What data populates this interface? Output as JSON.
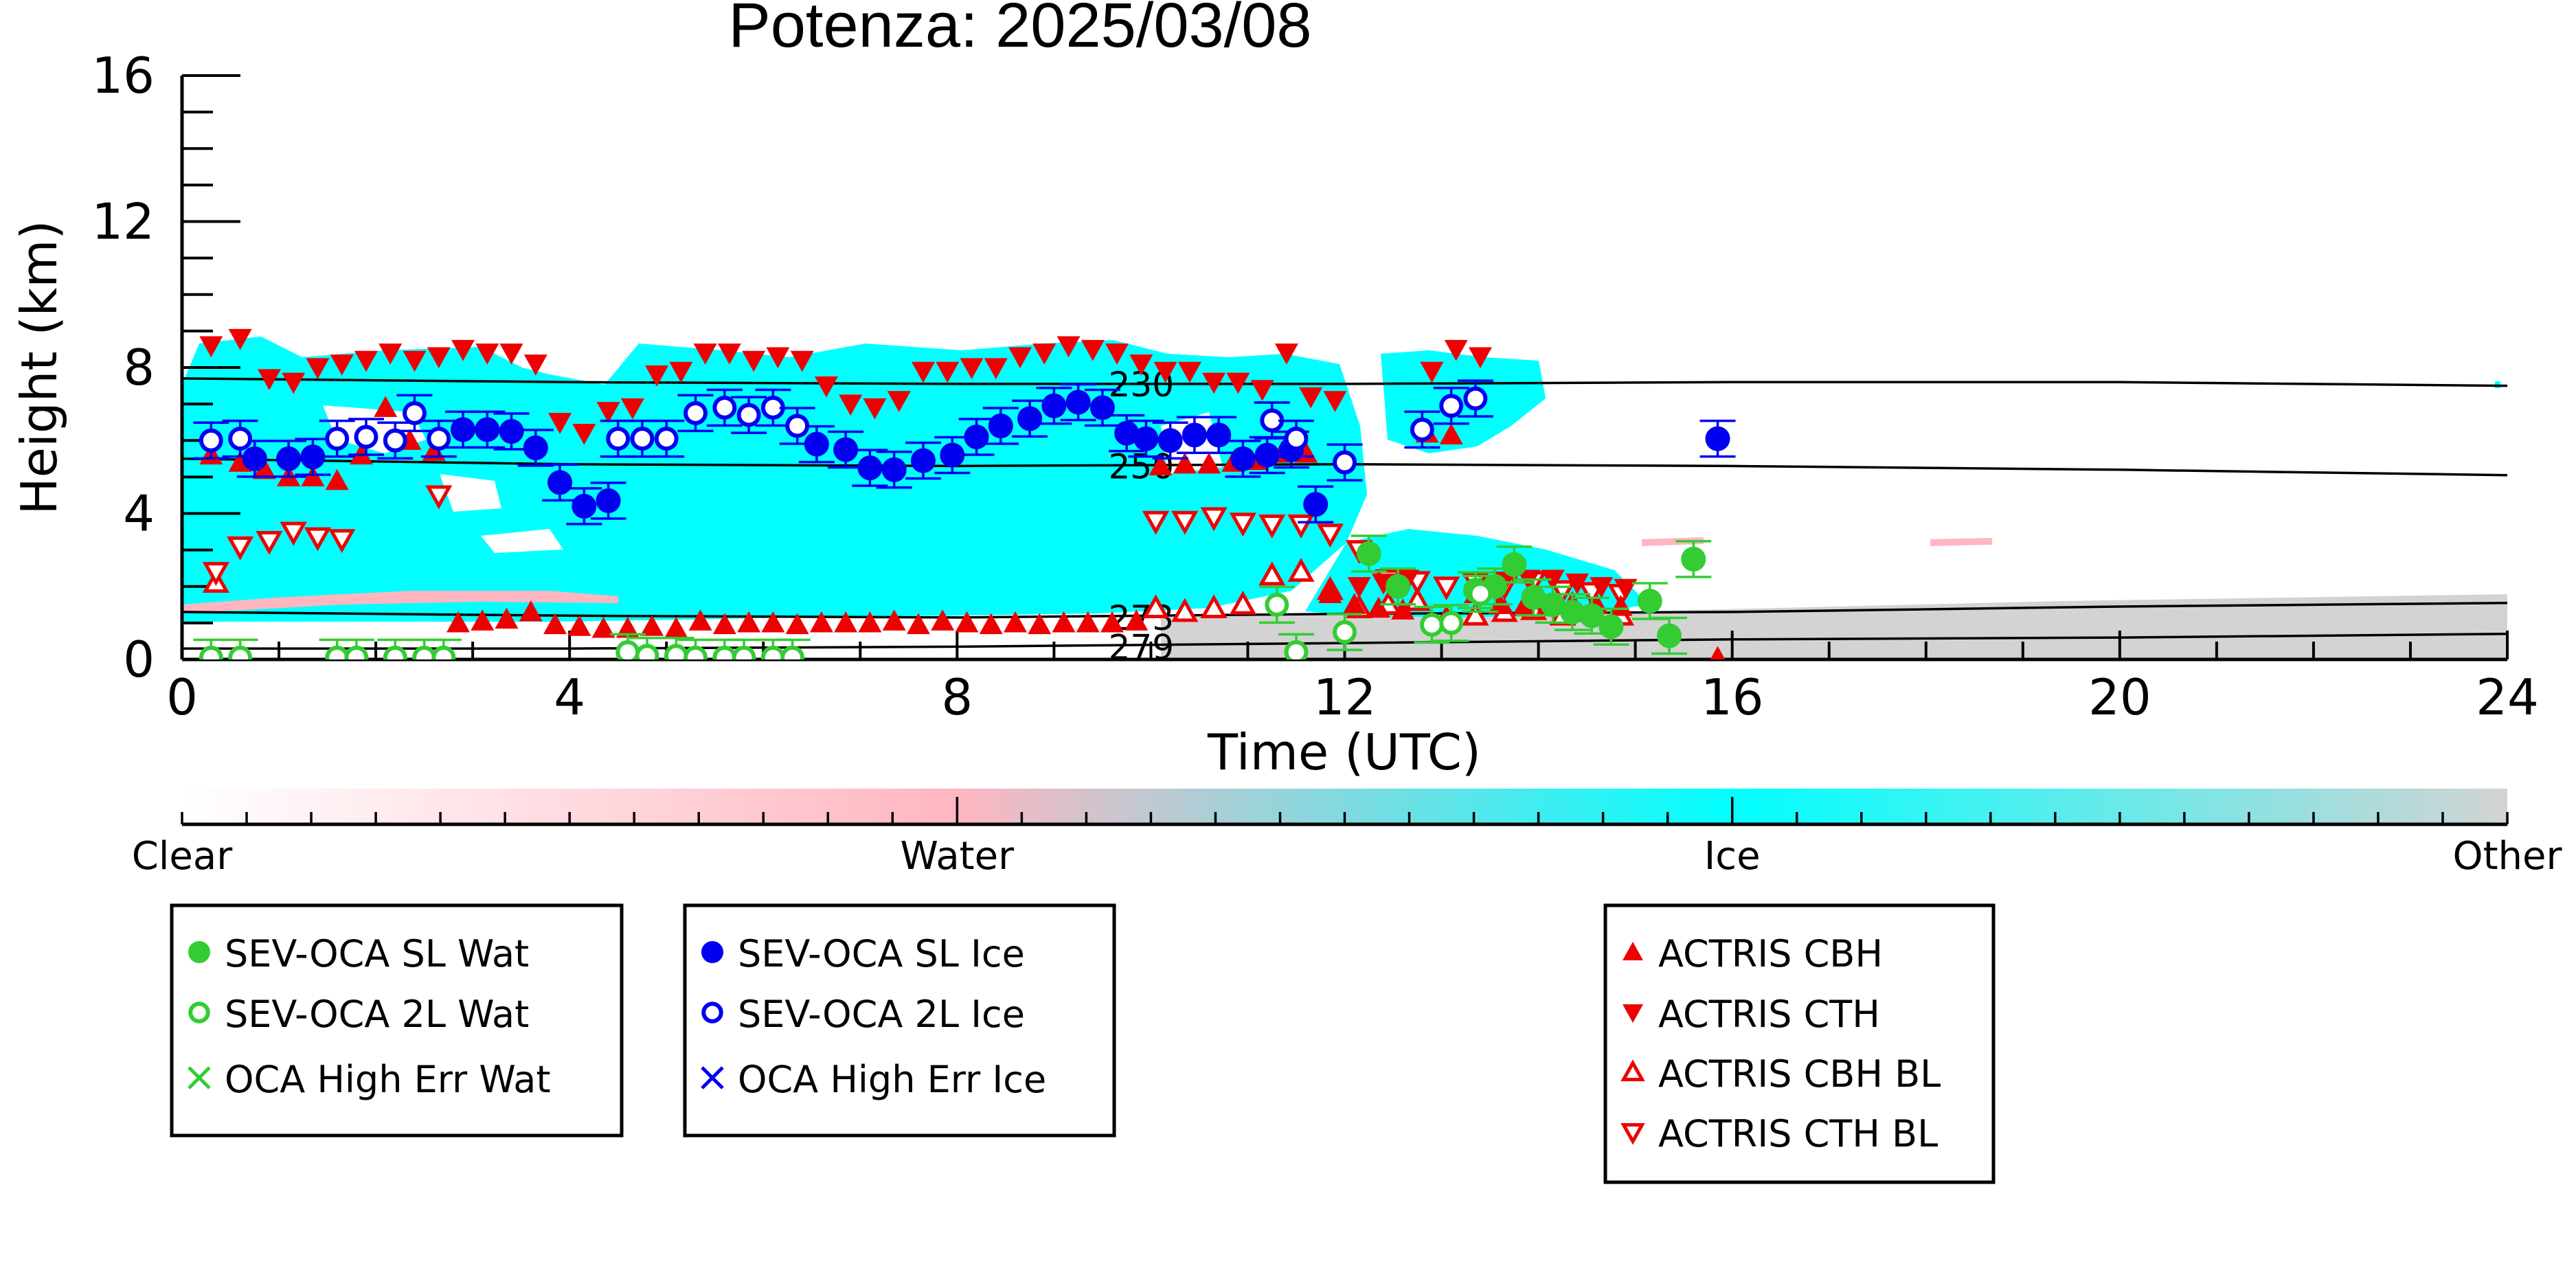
{
  "chart_data": {
    "type": "scatter",
    "title": "Potenza: 2025/03/08",
    "xlabel": "Time (UTC)",
    "ylabel": "Height (km)",
    "xlim": [
      0,
      24
    ],
    "ylim": [
      0,
      16
    ],
    "x_ticks": [
      "0",
      "4",
      "8",
      "12",
      "16",
      "20",
      "24"
    ],
    "y_ticks": [
      "0",
      "4",
      "8",
      "12",
      "16"
    ],
    "grid": false,
    "background_colors": {
      "ice": "#00ffff",
      "water": "#ffb6c1",
      "other": "#d3d3d3"
    },
    "contours": [
      {
        "label": "273",
        "points": [
          [
            0,
            1.3
          ],
          [
            4,
            1.2
          ],
          [
            8,
            1.15
          ],
          [
            12,
            1.25
          ],
          [
            16,
            1.3
          ],
          [
            20,
            1.45
          ],
          [
            24,
            1.55
          ]
        ]
      },
      {
        "label": "279",
        "points": [
          [
            0,
            0.3
          ],
          [
            4,
            0.3
          ],
          [
            8,
            0.35
          ],
          [
            12,
            0.45
          ],
          [
            16,
            0.55
          ],
          [
            20,
            0.6
          ],
          [
            24,
            0.7
          ]
        ]
      },
      {
        "label": "250",
        "points": [
          [
            0,
            5.5
          ],
          [
            4,
            5.35
          ],
          [
            8,
            5.3
          ],
          [
            12,
            5.35
          ],
          [
            16,
            5.3
          ],
          [
            20,
            5.2
          ],
          [
            24,
            5.05
          ]
        ]
      },
      {
        "label": "230",
        "points": [
          [
            0,
            7.7
          ],
          [
            4,
            7.6
          ],
          [
            8,
            7.55
          ],
          [
            12,
            7.55
          ],
          [
            16,
            7.6
          ],
          [
            20,
            7.6
          ],
          [
            24,
            7.5
          ]
        ]
      }
    ],
    "colorbar": {
      "labels": [
        "Clear",
        "Water",
        "Ice",
        "Other"
      ],
      "colors": [
        "#ffffff",
        "#ffb6c1",
        "#00ffff",
        "#d3d3d3"
      ]
    },
    "series": [
      {
        "name": "SEV-OCA SL Wat",
        "color": "#33cc33",
        "marker": "filled-circle",
        "x": [
          12.25,
          12.55,
          13.35,
          13.55,
          13.75,
          13.95,
          14.15,
          14.35,
          14.55,
          14.75,
          15.15,
          15.35,
          15.6
        ],
        "y": [
          2.9,
          2.0,
          1.9,
          2.0,
          2.6,
          1.7,
          1.5,
          1.3,
          1.2,
          0.9,
          1.6,
          0.65,
          2.75
        ]
      },
      {
        "name": "SEV-OCA 2L Wat",
        "color": "#33cc33",
        "marker": "open-circle",
        "x": [
          0.3,
          0.6,
          1.6,
          1.8,
          2.2,
          2.5,
          2.7,
          4.6,
          4.8,
          5.1,
          5.3,
          5.6,
          5.8,
          6.1,
          6.3,
          11.3,
          11.5,
          12.0,
          12.9,
          13.1,
          13.4
        ],
        "y": [
          0.05,
          0.05,
          0.05,
          0.05,
          0.05,
          0.05,
          0.05,
          0.2,
          0.1,
          0.1,
          0.05,
          0.05,
          0.05,
          0.05,
          0.05,
          1.5,
          0.2,
          0.75,
          0.95,
          1.0,
          1.8
        ]
      },
      {
        "name": "OCA High Err Wat",
        "color": "#33cc33",
        "marker": "x",
        "x": [],
        "y": []
      },
      {
        "name": "SEV-OCA SL Ice",
        "color": "#0000ee",
        "marker": "filled-circle",
        "x": [
          0.75,
          1.1,
          1.35,
          2.9,
          3.15,
          3.4,
          3.65,
          3.9,
          4.15,
          4.4,
          6.55,
          6.85,
          7.1,
          7.35,
          7.65,
          7.95,
          8.2,
          8.45,
          8.75,
          9.0,
          9.25,
          9.5,
          9.75,
          9.95,
          10.2,
          10.45,
          10.7,
          10.95,
          11.2,
          11.45,
          11.7,
          15.85
        ],
        "y": [
          5.5,
          5.5,
          5.55,
          6.3,
          6.3,
          6.25,
          5.8,
          4.85,
          4.2,
          4.35,
          5.9,
          5.75,
          5.25,
          5.2,
          5.45,
          5.6,
          6.1,
          6.4,
          6.6,
          6.95,
          7.05,
          6.9,
          6.2,
          6.05,
          6.0,
          6.15,
          6.15,
          5.5,
          5.6,
          5.75,
          4.25,
          6.05
        ]
      },
      {
        "name": "SEV-OCA 2L Ice",
        "color": "#0000ee",
        "marker": "open-circle",
        "x": [
          0.3,
          0.6,
          1.6,
          1.9,
          2.2,
          2.4,
          2.65,
          4.5,
          4.75,
          5.0,
          5.3,
          5.6,
          5.85,
          6.1,
          6.35,
          11.25,
          11.5,
          12.0,
          12.8,
          13.1,
          13.35
        ],
        "y": [
          6.0,
          6.05,
          6.05,
          6.1,
          6.0,
          6.75,
          6.05,
          6.05,
          6.05,
          6.05,
          6.75,
          6.9,
          6.7,
          6.9,
          6.4,
          6.55,
          6.05,
          5.4,
          6.3,
          6.95,
          7.15
        ]
      },
      {
        "name": "OCA High Err Ice",
        "color": "#0000ee",
        "marker": "x",
        "x": [],
        "y": []
      },
      {
        "name": "ACTRIS CBH",
        "color": "#ee0000",
        "marker": "filled-up",
        "x": [
          0.3,
          0.6,
          0.85,
          1.1,
          1.35,
          1.6,
          1.85,
          2.1,
          2.35,
          2.6,
          2.85,
          3.1,
          3.35,
          3.6,
          3.85,
          4.1,
          4.35,
          4.6,
          4.85,
          5.1,
          5.35,
          5.6,
          5.85,
          6.1,
          6.35,
          6.6,
          6.85,
          7.1,
          7.35,
          7.6,
          7.85,
          8.1,
          8.35,
          8.6,
          8.85,
          9.1,
          9.35,
          9.6,
          9.85,
          10.1,
          10.35,
          10.6,
          10.85,
          11.1,
          11.35,
          11.6,
          11.85,
          12.1,
          12.35,
          12.6,
          12.85,
          13.1,
          13.35,
          13.6,
          13.85,
          14.1,
          14.35,
          14.6,
          14.85,
          15.85
        ],
        "y": [
          5.6,
          5.4,
          5.2,
          5.0,
          5.0,
          4.9,
          5.6,
          6.9,
          6.0,
          5.7,
          1.0,
          1.05,
          1.1,
          1.3,
          0.95,
          0.9,
          0.85,
          0.85,
          0.9,
          0.85,
          1.05,
          0.95,
          1.0,
          1.0,
          0.95,
          1.0,
          1.0,
          1.0,
          1.05,
          0.95,
          1.05,
          1.0,
          0.95,
          1.0,
          0.95,
          1.0,
          1.0,
          1.0,
          1.05,
          5.3,
          5.35,
          5.35,
          5.4,
          5.45,
          5.65,
          5.65,
          1.8,
          1.5,
          1.4,
          1.35,
          6.2,
          6.15,
          1.8,
          1.5,
          1.45,
          1.5,
          1.55,
          1.5,
          1.45,
          0.05
        ]
      },
      {
        "name": "ACTRIS CTH",
        "color": "#ee0000",
        "marker": "filled-down",
        "x": [
          0.3,
          0.6,
          0.9,
          1.15,
          1.4,
          1.65,
          1.9,
          2.15,
          2.4,
          2.65,
          2.9,
          3.15,
          3.4,
          3.65,
          3.9,
          4.15,
          4.4,
          4.65,
          4.9,
          5.15,
          5.4,
          5.65,
          5.9,
          6.15,
          6.4,
          6.65,
          6.9,
          7.15,
          7.4,
          7.65,
          7.9,
          8.15,
          8.4,
          8.65,
          8.9,
          9.15,
          9.4,
          9.65,
          9.9,
          10.15,
          10.4,
          10.65,
          10.9,
          11.15,
          11.4,
          11.65,
          11.9,
          12.15,
          12.4,
          12.65,
          12.9,
          13.15,
          13.4,
          13.65,
          13.9,
          14.15,
          14.4,
          14.65,
          14.9
        ],
        "y": [
          8.6,
          8.8,
          7.7,
          7.6,
          8.0,
          8.1,
          8.2,
          8.4,
          8.2,
          8.3,
          8.5,
          8.4,
          8.4,
          8.1,
          6.5,
          6.2,
          6.8,
          6.9,
          7.8,
          7.9,
          8.4,
          8.4,
          8.2,
          8.3,
          8.2,
          7.5,
          7.0,
          6.9,
          7.1,
          7.9,
          7.9,
          8.0,
          8.0,
          8.3,
          8.4,
          8.6,
          8.5,
          8.4,
          8.1,
          7.9,
          7.9,
          7.6,
          7.6,
          7.4,
          8.4,
          7.2,
          7.1,
          2.0,
          2.1,
          2.2,
          7.9,
          8.5,
          8.3,
          2.15,
          2.2,
          2.2,
          2.1,
          2.0,
          1.95
        ]
      },
      {
        "name": "ACTRIS CBH BL",
        "color": "#ee0000",
        "marker": "open-up",
        "x": [
          0.35,
          10.05,
          10.35,
          10.65,
          10.95,
          11.25,
          11.55,
          11.85,
          12.15,
          12.45,
          12.75,
          13.05,
          13.35,
          13.65,
          13.95,
          14.25,
          14.55,
          14.85
        ],
        "y": [
          2.1,
          1.4,
          1.3,
          1.4,
          1.5,
          2.3,
          2.4,
          1.9,
          1.4,
          1.5,
          1.6,
          1.1,
          1.2,
          1.3,
          1.35,
          1.2,
          1.3,
          1.2
        ]
      },
      {
        "name": "ACTRIS CTH BL",
        "color": "#ee0000",
        "marker": "open-down",
        "x": [
          0.35,
          0.6,
          0.9,
          1.15,
          1.4,
          1.65,
          2.65,
          10.05,
          10.35,
          10.65,
          10.95,
          11.25,
          11.55,
          11.85,
          12.15,
          12.45,
          12.75,
          13.05,
          13.35,
          13.65,
          13.95,
          14.25,
          14.55,
          14.85
        ],
        "y": [
          2.4,
          3.1,
          3.25,
          3.5,
          3.35,
          3.3,
          4.5,
          3.8,
          3.8,
          3.9,
          3.75,
          3.7,
          3.7,
          3.45,
          3.0,
          2.2,
          2.15,
          2.0,
          2.1,
          2.0,
          2.15,
          1.9,
          1.85,
          1.8
        ]
      }
    ]
  }
}
